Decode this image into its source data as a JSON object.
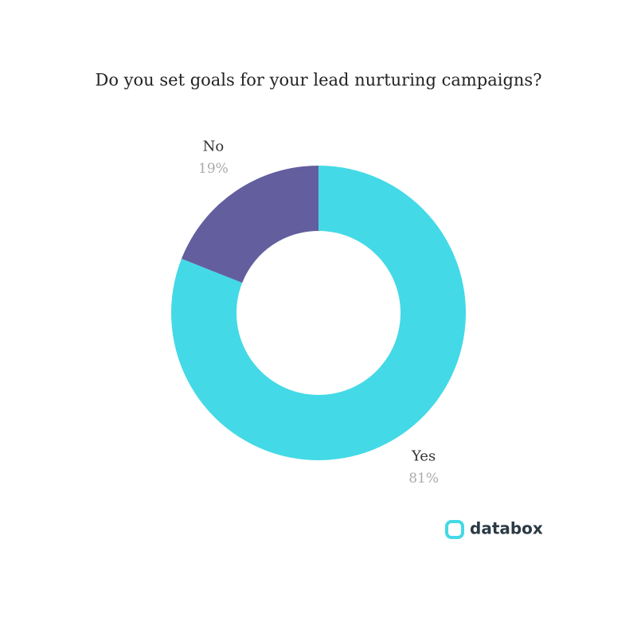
{
  "chart_data": {
    "type": "donut",
    "title": "Do you set goals for your lead nurturing campaigns?",
    "categories": [
      "Yes",
      "No"
    ],
    "values": [
      81,
      19
    ],
    "value_labels": [
      "81%",
      "19%"
    ],
    "colors": [
      "#44d9e6",
      "#635e9e"
    ],
    "brand": "databox"
  }
}
